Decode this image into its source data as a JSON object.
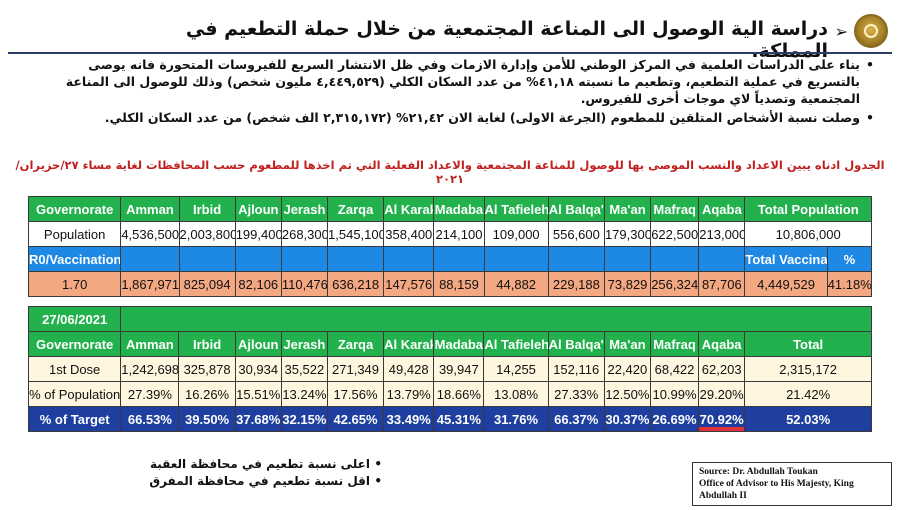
{
  "header": {
    "title": "دراسة الية الوصول الى المناعة المجتمعية من خلال حملة التطعيم في المملكة.",
    "bullets": [
      "بناء على الدراسات العلمية في المركز الوطني للأمن وإدارة الازمات وفي ظل الانتشار السريع للفيروسات المتحورة فانه يوصى بالتسريع في عملية التطعيم، وتطعيم ما نسبته ٤١,١٨% من عدد السكان الكلي (٤,٤٤٩,٥٢٩ مليون شخص) وذلك للوصول الى المناعة المجتمعية وتصدياً لاي موجات أخرى للفيروس.",
      "وصلت نسبة الأشخاص المتلقين للمطعوم (الجرعة الاولى) لغاية الان ٢١,٤٢% (٢,٣١٥,١٧٢ الف شخص) من عدد السكان الكلي."
    ],
    "caption": "الجدول ادناه يبين الاعداد والنسب الموصى بها للوصول للمناعة المجتمعية والاعداد الفعلية التي تم اخذها للمطعوم حسب المحافظات لغاية مساء ٢٧/حزيران/٢٠٢١"
  },
  "table1": {
    "governorates": [
      "Governorate",
      "Amman",
      "Irbid",
      "Ajloun",
      "Jerash",
      "Zarqa",
      "Al Karak",
      "Madaba",
      "Al Tafieleh",
      "Al Balqa'",
      "Ma'an",
      "Mafraq",
      "Aqaba"
    ],
    "total_population_label": "Total Population",
    "population": [
      "Population",
      "4,536,500",
      "2,003,800",
      "199,400",
      "268,300",
      "1,545,100",
      "358,400",
      "214,100",
      "109,000",
      "556,600",
      "179,300",
      "622,500",
      "213,000"
    ],
    "total_population": "10,806,000",
    "r0_label": "R0/Vaccinations",
    "total_vaccinations_label": "Total Vaccinations",
    "percent_label": "%",
    "r0_value": "1.70",
    "vaccinations": [
      "1,867,971",
      "825,094",
      "82,106",
      "110,476",
      "636,218",
      "147,576",
      "88,159",
      "44,882",
      "229,188",
      "73,829",
      "256,324",
      "87,706"
    ],
    "total_vaccinations": "4,449,529",
    "total_percent": "41.18%"
  },
  "table2": {
    "date": "27/06/2021",
    "governorates": [
      "Governorate",
      "Amman",
      "Irbid",
      "Ajloun",
      "Jerash",
      "Zarqa",
      "Al Karak",
      "Madaba",
      "Al Tafieleh",
      "Al Balqa'",
      "Ma'an",
      "Mafraq",
      "Aqaba"
    ],
    "total_label": "Total",
    "first_dose": [
      "1st Dose",
      "1,242,698",
      "325,878",
      "30,934",
      "35,522",
      "271,349",
      "49,428",
      "39,947",
      "14,255",
      "152,116",
      "22,420",
      "68,422",
      "62,203"
    ],
    "first_dose_total": "2,315,172",
    "pct_population": [
      "% of Population",
      "27.39%",
      "16.26%",
      "15.51%",
      "13.24%",
      "17.56%",
      "13.79%",
      "18.66%",
      "13.08%",
      "27.33%",
      "12.50%",
      "10.99%",
      "29.20%"
    ],
    "pct_population_total": "21.42%",
    "pct_target": [
      "% of Target",
      "66.53%",
      "39.50%",
      "37.68%",
      "32.15%",
      "42.65%",
      "33.49%",
      "45.31%",
      "31.76%",
      "66.37%",
      "30.37%",
      "26.69%",
      "70.92%"
    ],
    "pct_target_total": "52.03%"
  },
  "notes": [
    "اعلى نسبة تطعيم في محافظة العقبة",
    "اقل نسبة تطعيم في محافظة المفرق"
  ],
  "source": {
    "line1": "Source: Dr. Abdullah Toukan",
    "line2": "Office of Advisor to His Majesty, King Abdullah II"
  }
}
